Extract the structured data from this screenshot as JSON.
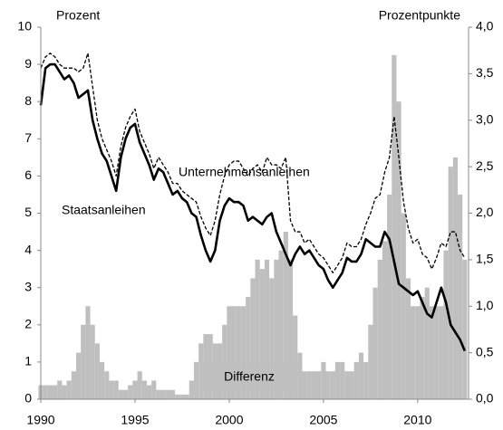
{
  "chart_data": {
    "type": "line",
    "left_axis_label": "Prozent",
    "right_axis_label": "Prozentpunkte",
    "x": [
      1990,
      1990.25,
      1990.5,
      1990.75,
      1991,
      1991.25,
      1991.5,
      1991.75,
      1992,
      1992.25,
      1992.5,
      1992.75,
      1993,
      1993.25,
      1993.5,
      1993.75,
      1994,
      1994.25,
      1994.5,
      1994.75,
      1995,
      1995.25,
      1995.5,
      1995.75,
      1996,
      1996.25,
      1996.5,
      1996.75,
      1997,
      1997.25,
      1997.5,
      1997.75,
      1998,
      1998.25,
      1998.5,
      1998.75,
      1999,
      1999.25,
      1999.5,
      1999.75,
      2000,
      2000.25,
      2000.5,
      2000.75,
      2001,
      2001.25,
      2001.5,
      2001.75,
      2002,
      2002.25,
      2002.5,
      2002.75,
      2003,
      2003.25,
      2003.5,
      2003.75,
      2004,
      2004.25,
      2004.5,
      2004.75,
      2005,
      2005.25,
      2005.5,
      2005.75,
      2006,
      2006.25,
      2006.5,
      2006.75,
      2007,
      2007.25,
      2007.5,
      2007.75,
      2008,
      2008.25,
      2008.5,
      2008.75,
      2009,
      2009.25,
      2009.5,
      2009.75,
      2010,
      2010.25,
      2010.5,
      2010.75,
      2011,
      2011.25,
      2011.5,
      2011.75,
      2012,
      2012.25,
      2012.5
    ],
    "series": [
      {
        "name": "Staatsanleihen",
        "type": "line",
        "color": "#000000",
        "dashed": false,
        "values": [
          7.9,
          8.9,
          9.0,
          9.0,
          8.8,
          8.6,
          8.7,
          8.5,
          8.1,
          8.2,
          8.3,
          7.5,
          7.0,
          6.6,
          6.4,
          6.0,
          5.6,
          6.5,
          7.0,
          7.3,
          7.4,
          6.9,
          6.6,
          6.3,
          5.9,
          6.2,
          6.1,
          5.8,
          5.5,
          5.6,
          5.4,
          5.3,
          5.0,
          4.9,
          4.4,
          4.0,
          3.7,
          4.0,
          4.8,
          5.2,
          5.4,
          5.3,
          5.3,
          5.2,
          4.8,
          4.9,
          4.8,
          4.7,
          4.9,
          5.0,
          4.5,
          4.2,
          3.9,
          3.6,
          3.9,
          4.1,
          3.9,
          4.0,
          3.8,
          3.6,
          3.5,
          3.2,
          3.0,
          3.2,
          3.4,
          3.8,
          3.7,
          3.7,
          3.9,
          4.3,
          4.2,
          4.1,
          4.1,
          4.5,
          4.3,
          3.7,
          3.1,
          3.0,
          2.9,
          2.8,
          2.9,
          2.6,
          2.3,
          2.2,
          2.6,
          3.0,
          2.6,
          2.0,
          1.8,
          1.6,
          1.3
        ]
      },
      {
        "name": "Unternehmensanleihen",
        "type": "line",
        "color": "#000000",
        "dashed": true,
        "values": [
          8.9,
          9.2,
          9.3,
          9.2,
          9.0,
          8.9,
          8.9,
          8.9,
          8.8,
          8.9,
          9.3,
          8.4,
          7.5,
          7.0,
          6.7,
          6.4,
          6.0,
          6.8,
          7.3,
          7.6,
          7.8,
          7.2,
          6.9,
          6.6,
          6.2,
          6.5,
          6.3,
          6.1,
          5.8,
          5.8,
          5.6,
          5.5,
          5.4,
          5.3,
          4.9,
          4.6,
          4.4,
          4.8,
          5.5,
          6.0,
          6.3,
          6.4,
          6.4,
          6.2,
          6.0,
          6.2,
          6.3,
          6.1,
          6.5,
          6.3,
          6.3,
          6.2,
          6.5,
          4.8,
          4.5,
          4.5,
          4.2,
          4.3,
          4.1,
          3.9,
          3.8,
          3.6,
          3.4,
          3.6,
          3.8,
          4.2,
          4.1,
          4.1,
          4.3,
          4.7,
          5.0,
          5.4,
          5.5,
          6.1,
          6.5,
          7.6,
          6.5,
          5.3,
          4.6,
          4.2,
          4.3,
          3.9,
          3.8,
          3.5,
          3.8,
          4.2,
          4.1,
          4.5,
          4.5,
          4.0,
          3.8
        ]
      },
      {
        "name": "Differenz",
        "type": "bar",
        "axis": "y2",
        "color": "#bfbfbf",
        "values": [
          0.15,
          0.15,
          0.15,
          0.15,
          0.2,
          0.15,
          0.2,
          0.3,
          0.5,
          0.8,
          1.0,
          0.8,
          0.6,
          0.4,
          0.3,
          0.2,
          0.2,
          0.1,
          0.1,
          0.15,
          0.2,
          0.3,
          0.2,
          0.15,
          0.2,
          0.1,
          0.1,
          0.1,
          0.1,
          0.05,
          0.05,
          0.05,
          0.2,
          0.4,
          0.6,
          0.7,
          0.7,
          0.6,
          0.6,
          0.8,
          1.0,
          1.0,
          1.0,
          1.0,
          1.1,
          1.3,
          1.5,
          1.4,
          1.5,
          1.3,
          1.5,
          1.6,
          1.8,
          1.5,
          0.9,
          0.5,
          0.3,
          0.3,
          0.3,
          0.3,
          0.4,
          0.3,
          0.3,
          0.4,
          0.4,
          0.3,
          0.3,
          0.4,
          0.5,
          0.4,
          0.8,
          1.2,
          1.5,
          1.7,
          2.2,
          3.7,
          3.2,
          2.0,
          1.3,
          1.0,
          1.0,
          1.1,
          1.2,
          1.0,
          1.0,
          1.0,
          1.6,
          2.5,
          2.6,
          2.2,
          1.5
        ]
      }
    ],
    "xlim": [
      1990,
      2012.7
    ],
    "xticks": [
      1990,
      1995,
      2000,
      2005,
      2010
    ],
    "ylim": [
      0,
      10
    ],
    "yticks": [
      0,
      1,
      2,
      3,
      4,
      5,
      6,
      7,
      8,
      9,
      10
    ],
    "y2lim": [
      0,
      4
    ],
    "y2ticks": [
      {
        "value": 0,
        "label": "0,0"
      },
      {
        "value": 0.5,
        "label": "0,5"
      },
      {
        "value": 1,
        "label": "1,0"
      },
      {
        "value": 1.5,
        "label": "1,5"
      },
      {
        "value": 2,
        "label": "2,0"
      },
      {
        "value": 2.5,
        "label": "2,5"
      },
      {
        "value": 3,
        "label": "3,0"
      },
      {
        "value": 3.5,
        "label": "3,5"
      },
      {
        "value": 4,
        "label": "4,0"
      }
    ]
  }
}
